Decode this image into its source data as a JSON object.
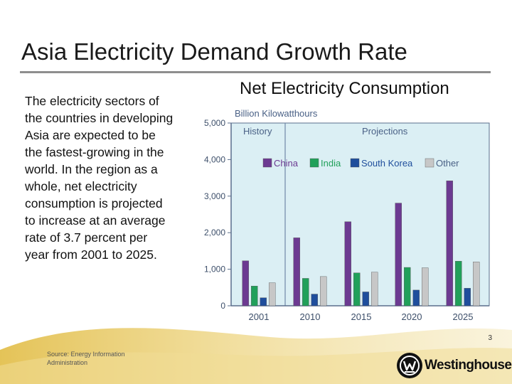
{
  "slide": {
    "title": "Asia Electricity Demand Growth Rate",
    "body": "The electricity sectors of the countries in developing Asia are expected to be the fastest-growing in the world. In the region as a whole, net electricity consumption is projected to increase at an average rate of 3.7 percent per year from 2001 to 2025.",
    "page_number": "3",
    "source": "Source: Energy Information Administration",
    "logo_text": "Westinghouse"
  },
  "chart_data": {
    "type": "bar",
    "heading": "Net Electricity Consumption",
    "units_label": "Billion Kilowatthours",
    "history_label": "History",
    "projections_label": "Projections",
    "categories": [
      "2001",
      "2010",
      "2015",
      "2020",
      "2025"
    ],
    "y_ticks": [
      "0",
      "1,000",
      "2,000",
      "3,000",
      "4,000",
      "5,000"
    ],
    "ylim": [
      0,
      5000
    ],
    "series": [
      {
        "name": "China",
        "color": "#6c3a91",
        "values": [
          1230,
          1860,
          2300,
          2810,
          3420
        ]
      },
      {
        "name": "India",
        "color": "#21a05a",
        "values": [
          540,
          750,
          900,
          1050,
          1220
        ]
      },
      {
        "name": "South Korea",
        "color": "#1f4e9c",
        "values": [
          220,
          320,
          380,
          430,
          480
        ]
      },
      {
        "name": "Other",
        "color": "#c7c7c7",
        "values": [
          630,
          800,
          920,
          1040,
          1200
        ]
      }
    ],
    "legend_position": "top",
    "grid": false
  },
  "colors": {
    "plot_background": "#dbeff4",
    "axis": "#5a6f8c",
    "title_rule": "#8e8e8e",
    "footer_accent": "#e7c24a"
  }
}
